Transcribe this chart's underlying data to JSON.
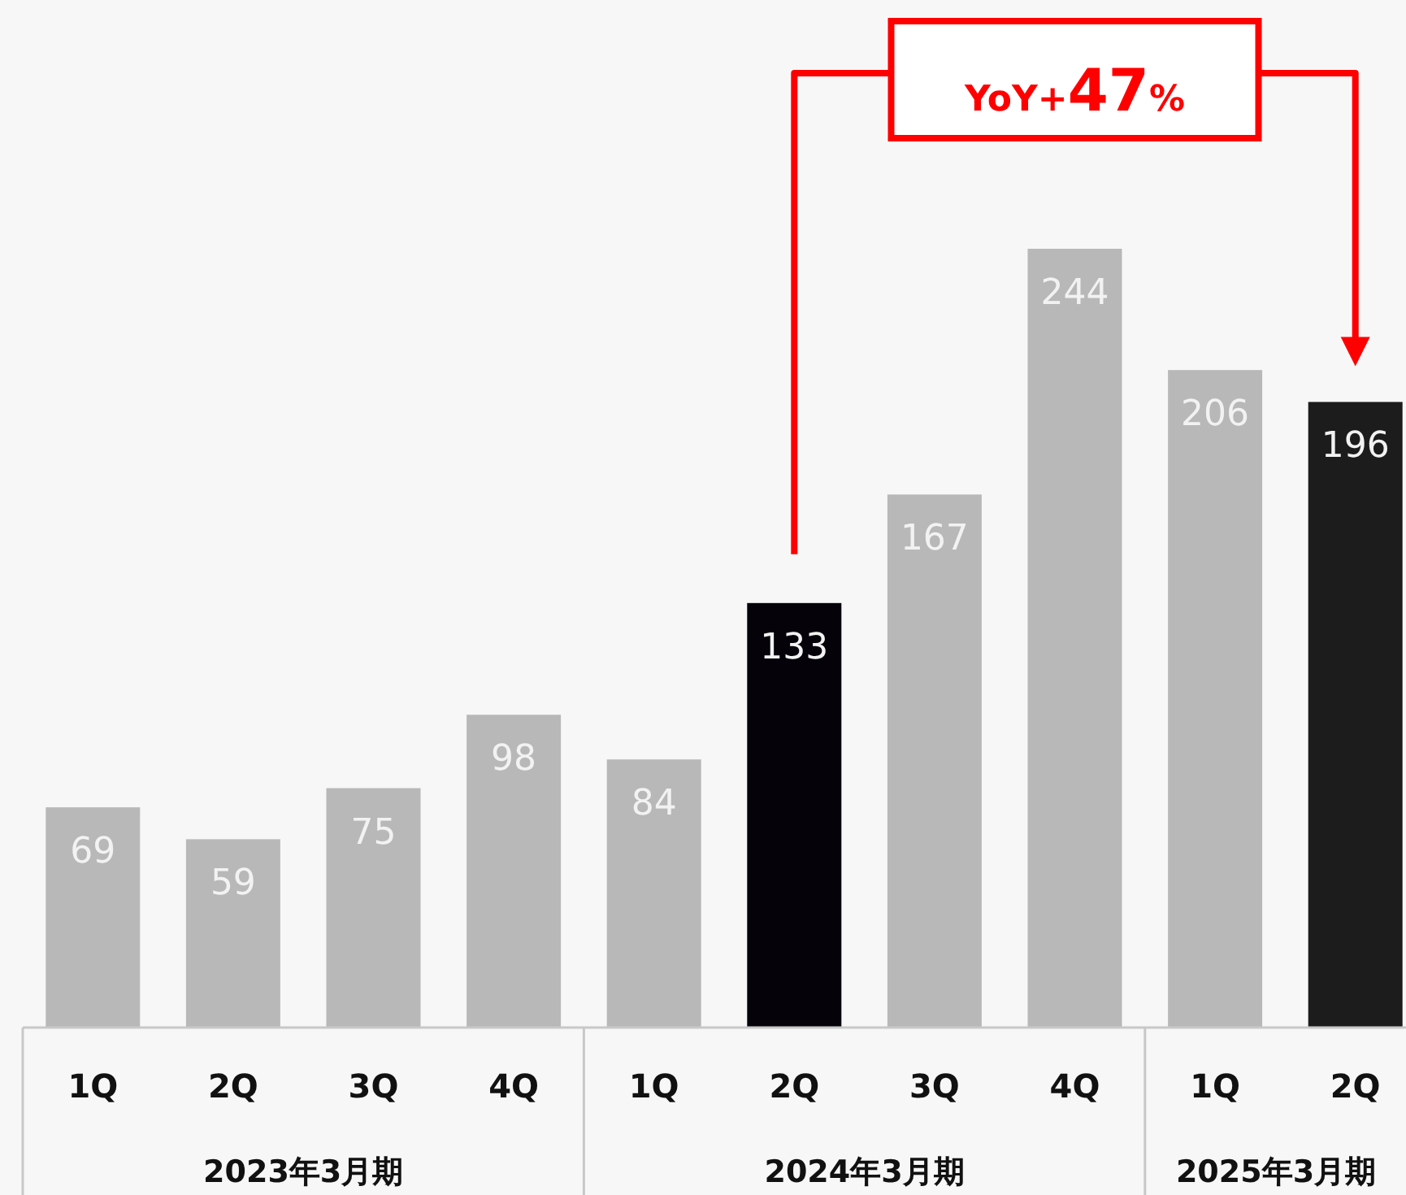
{
  "chart_data": {
    "type": "bar",
    "categories": [
      "1Q",
      "2Q",
      "3Q",
      "4Q",
      "1Q",
      "2Q",
      "3Q",
      "4Q",
      "1Q",
      "2Q"
    ],
    "values": [
      69,
      59,
      75,
      98,
      84,
      133,
      167,
      244,
      206,
      196
    ],
    "colors": [
      "#b8b8b8",
      "#b8b8b8",
      "#b8b8b8",
      "#b8b8b8",
      "#b8b8b8",
      "#05020a",
      "#b8b8b8",
      "#b8b8b8",
      "#b8b8b8",
      "#1c1c1c"
    ],
    "data_labels": true,
    "annotations": [
      "YoY+47%",
      "2023年3月期",
      "2024年3月期",
      "2025年3月期"
    ]
  }
}
